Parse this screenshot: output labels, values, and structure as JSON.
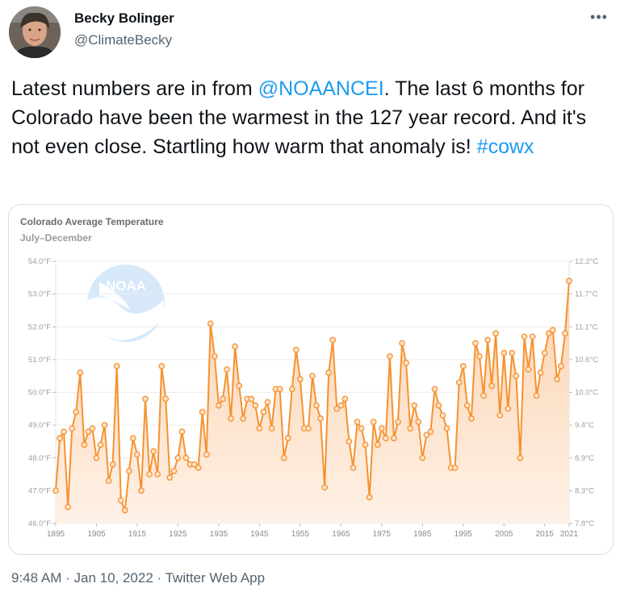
{
  "author": {
    "name": "Becky Bolinger",
    "handle": "@ClimateBecky"
  },
  "tweet": {
    "text_before": "Latest numbers are in from ",
    "mention": "@NOAANCEI",
    "text_after": ". The last 6 months for Colorado have been the warmest in the 127 year record. And it's not even close. Startling how warm that anomaly is! ",
    "hashtag": "#cowx"
  },
  "meta": {
    "time": "9:48 AM",
    "separator": " · ",
    "date": "Jan 10, 2022",
    "client": "Twitter Web App"
  },
  "icons": {
    "more": "more-icon",
    "logo": "noaa-logo"
  },
  "colors": {
    "line": "#f5922f",
    "fill": "#fde3cc",
    "link": "#1d9bf0"
  },
  "chart_data": {
    "type": "area",
    "title": "Colorado Average Temperature",
    "subtitle": "July–December",
    "ylim": [
      46.0,
      54.0
    ],
    "y_ticks_left": [
      "46.0°F",
      "47.0°F",
      "48.0°F",
      "49.0°F",
      "50.0°F",
      "51.0°F",
      "52.0°F",
      "53.0°F",
      "54.0°F"
    ],
    "y_ticks_right": [
      "7.8°C",
      "8.3°C",
      "8.9°C",
      "9.4°C",
      "10.0°C",
      "10.6°C",
      "11.1°C",
      "11.7°C",
      "12.2°C"
    ],
    "x_ticks": [
      "1895",
      "1905",
      "1915",
      "1925",
      "1935",
      "1945",
      "1955",
      "1965",
      "1975",
      "1985",
      "1995",
      "2005",
      "2015",
      "2021"
    ],
    "x_start": 1895,
    "x_end": 2021,
    "values": [
      47.0,
      48.6,
      48.8,
      46.5,
      48.9,
      49.4,
      50.6,
      48.4,
      48.8,
      48.9,
      48.0,
      48.4,
      49.0,
      47.3,
      47.8,
      50.8,
      46.7,
      46.4,
      47.6,
      48.6,
      48.1,
      47.0,
      49.8,
      47.5,
      48.2,
      47.5,
      50.8,
      49.8,
      47.4,
      47.6,
      48.0,
      48.8,
      48.0,
      47.8,
      47.8,
      47.7,
      49.4,
      48.1,
      52.1,
      51.1,
      49.6,
      49.8,
      50.7,
      49.2,
      51.4,
      50.2,
      49.2,
      49.8,
      49.8,
      49.6,
      48.9,
      49.4,
      49.7,
      48.9,
      50.1,
      50.1,
      48.0,
      48.6,
      50.1,
      51.3,
      50.4,
      48.9,
      48.9,
      50.5,
      49.6,
      49.2,
      47.1,
      50.6,
      51.6,
      49.5,
      49.6,
      49.8,
      48.5,
      47.7,
      49.1,
      48.9,
      48.4,
      46.8,
      49.1,
      48.4,
      48.9,
      48.6,
      51.1,
      48.6,
      49.1,
      51.5,
      50.9,
      48.9,
      49.6,
      49.1,
      48.0,
      48.7,
      48.8,
      50.1,
      49.6,
      49.3,
      48.9,
      47.7,
      47.7,
      50.3,
      50.8,
      49.6,
      49.2,
      51.5,
      51.1,
      49.9,
      51.6,
      50.2,
      51.8,
      49.3,
      51.2,
      49.5,
      51.2,
      50.5,
      48.0,
      51.7,
      50.7,
      51.7,
      49.9,
      50.6,
      51.2,
      51.8,
      51.9,
      50.4,
      50.8,
      51.8,
      53.4
    ]
  }
}
